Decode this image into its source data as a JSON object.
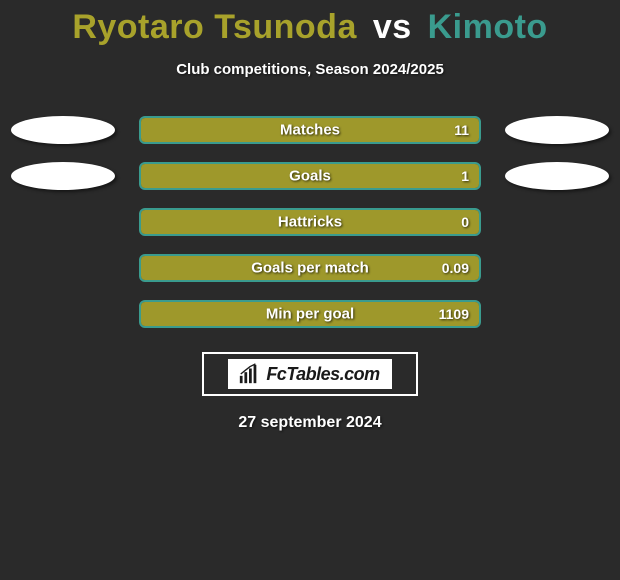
{
  "title": {
    "player1": "Ryotaro Tsunoda",
    "vs": "vs",
    "player2": "Kimoto",
    "player1_color": "#a8a22b",
    "vs_color": "#ffffff",
    "player2_color": "#3a9b8e"
  },
  "subtitle": "Club competitions, Season 2024/2025",
  "accent_color_left": "#a8a22b",
  "accent_color_right": "#3a9b8e",
  "border_color": "#3a9b8e",
  "background_color": "#2a2a2a",
  "stats": [
    {
      "label": "Matches",
      "value": "11",
      "fill_pct": 100,
      "show_left_ellipse": true,
      "show_right_ellipse": true
    },
    {
      "label": "Goals",
      "value": "1",
      "fill_pct": 100,
      "show_left_ellipse": true,
      "show_right_ellipse": true
    },
    {
      "label": "Hattricks",
      "value": "0",
      "fill_pct": 100,
      "show_left_ellipse": false,
      "show_right_ellipse": false
    },
    {
      "label": "Goals per match",
      "value": "0.09",
      "fill_pct": 100,
      "show_left_ellipse": false,
      "show_right_ellipse": false
    },
    {
      "label": "Min per goal",
      "value": "1109",
      "fill_pct": 100,
      "show_left_ellipse": false,
      "show_right_ellipse": false
    }
  ],
  "brand": "FcTables.com",
  "date": "27 september 2024"
}
